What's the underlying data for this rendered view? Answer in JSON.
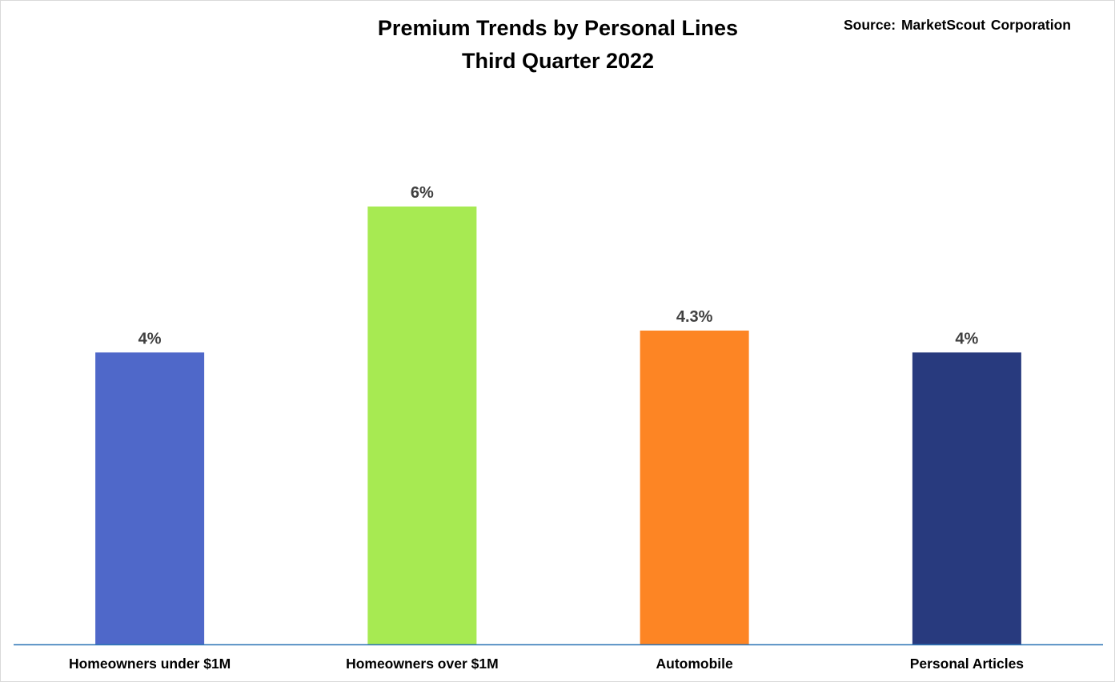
{
  "chart_data": {
    "type": "bar",
    "title": [
      "Premium Trends by Personal Lines",
      "Third Quarter 2022"
    ],
    "source": "Source: MarketScout Corporation",
    "categories": [
      "Homeowners under $1M",
      "Homeowners over $1M",
      "Automobile",
      "Personal Articles"
    ],
    "values": [
      4,
      6,
      4.3,
      4
    ],
    "data_labels": [
      "4%",
      "6%",
      "4.3%",
      "4%"
    ],
    "colors": [
      "#4f68c9",
      "#a7ea52",
      "#fd8524",
      "#283a7e"
    ],
    "ylim": [
      0,
      6
    ],
    "grid": false,
    "legend": "none",
    "axis_color": "#2e75b6",
    "label_color": "#404040"
  }
}
